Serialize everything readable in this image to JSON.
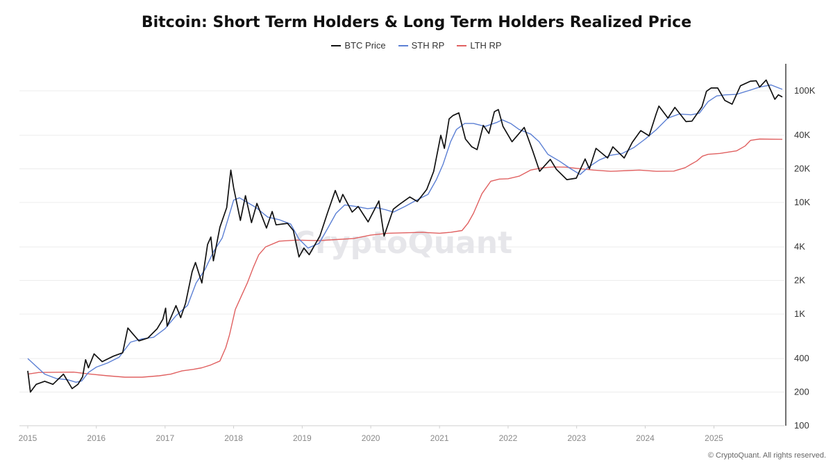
{
  "chart_data": {
    "type": "line",
    "title": "Bitcoin: Short Term Holders & Long Term Holders Realized Price",
    "y_scale": "log",
    "ylim": [
      100,
      200000
    ],
    "xlim": [
      "2015-01-01",
      "2025-12-31"
    ],
    "x_ticks": [
      "2015",
      "2016",
      "2017",
      "2018",
      "2019",
      "2020",
      "2021",
      "2022",
      "2023",
      "2024",
      "2025"
    ],
    "y_ticks": [
      {
        "value": 100,
        "label": "100"
      },
      {
        "value": 200,
        "label": "200"
      },
      {
        "value": 400,
        "label": "400"
      },
      {
        "value": 1000,
        "label": "1K"
      },
      {
        "value": 2000,
        "label": "2K"
      },
      {
        "value": 4000,
        "label": "4K"
      },
      {
        "value": 10000,
        "label": "10K"
      },
      {
        "value": 20000,
        "label": "20K"
      },
      {
        "value": 40000,
        "label": "40K"
      },
      {
        "value": 100000,
        "label": "100K"
      }
    ],
    "grid": true,
    "legend_position": "top-center",
    "watermark": "CryptoQuant",
    "series": [
      {
        "name": "BTC Price",
        "color": "#111111",
        "points": [
          [
            "2015-01-01",
            310
          ],
          [
            "2015-01-15",
            200
          ],
          [
            "2015-02-15",
            235
          ],
          [
            "2015-04-01",
            250
          ],
          [
            "2015-05-15",
            235
          ],
          [
            "2015-07-10",
            290
          ],
          [
            "2015-08-25",
            215
          ],
          [
            "2015-09-25",
            235
          ],
          [
            "2015-10-20",
            275
          ],
          [
            "2015-11-05",
            390
          ],
          [
            "2015-11-20",
            330
          ],
          [
            "2015-12-20",
            440
          ],
          [
            "2016-02-01",
            375
          ],
          [
            "2016-04-01",
            420
          ],
          [
            "2016-05-20",
            450
          ],
          [
            "2016-06-17",
            750
          ],
          [
            "2016-07-15",
            660
          ],
          [
            "2016-08-15",
            575
          ],
          [
            "2016-10-01",
            610
          ],
          [
            "2016-11-20",
            740
          ],
          [
            "2016-12-20",
            900
          ],
          [
            "2017-01-04",
            1130
          ],
          [
            "2017-01-12",
            780
          ],
          [
            "2017-02-28",
            1190
          ],
          [
            "2017-03-25",
            930
          ],
          [
            "2017-04-20",
            1250
          ],
          [
            "2017-05-25",
            2400
          ],
          [
            "2017-06-12",
            2900
          ],
          [
            "2017-07-16",
            1900
          ],
          [
            "2017-08-15",
            4200
          ],
          [
            "2017-09-02",
            4900
          ],
          [
            "2017-09-15",
            3000
          ],
          [
            "2017-10-20",
            6000
          ],
          [
            "2017-11-25",
            9000
          ],
          [
            "2017-12-17",
            19500
          ],
          [
            "2018-01-01",
            13500
          ],
          [
            "2018-02-06",
            6900
          ],
          [
            "2018-03-05",
            11500
          ],
          [
            "2018-04-06",
            6600
          ],
          [
            "2018-05-05",
            9800
          ],
          [
            "2018-06-25",
            5900
          ],
          [
            "2018-07-25",
            8300
          ],
          [
            "2018-08-15",
            6300
          ],
          [
            "2018-10-15",
            6500
          ],
          [
            "2018-11-15",
            5600
          ],
          [
            "2018-12-15",
            3250
          ],
          [
            "2019-01-10",
            3900
          ],
          [
            "2019-02-07",
            3400
          ],
          [
            "2019-04-05",
            5000
          ],
          [
            "2019-05-15",
            8000
          ],
          [
            "2019-06-26",
            12800
          ],
          [
            "2019-07-20",
            10000
          ],
          [
            "2019-08-05",
            11800
          ],
          [
            "2019-09-24",
            8200
          ],
          [
            "2019-10-26",
            9200
          ],
          [
            "2019-12-18",
            6700
          ],
          [
            "2020-02-13",
            10300
          ],
          [
            "2020-03-12",
            5000
          ],
          [
            "2020-04-30",
            8700
          ],
          [
            "2020-06-01",
            9600
          ],
          [
            "2020-07-27",
            11200
          ],
          [
            "2020-09-05",
            10200
          ],
          [
            "2020-10-25",
            13100
          ],
          [
            "2020-12-01",
            19000
          ],
          [
            "2021-01-08",
            40000
          ],
          [
            "2021-01-27",
            30500
          ],
          [
            "2021-02-21",
            56000
          ],
          [
            "2021-03-13",
            60000
          ],
          [
            "2021-04-14",
            63500
          ],
          [
            "2021-05-19",
            37000
          ],
          [
            "2021-06-22",
            31500
          ],
          [
            "2021-07-20",
            29800
          ],
          [
            "2021-08-22",
            49000
          ],
          [
            "2021-09-21",
            41500
          ],
          [
            "2021-10-20",
            65000
          ],
          [
            "2021-11-10",
            68000
          ],
          [
            "2021-12-05",
            48000
          ],
          [
            "2022-01-22",
            35000
          ],
          [
            "2022-03-28",
            47000
          ],
          [
            "2022-05-12",
            29000
          ],
          [
            "2022-06-18",
            19000
          ],
          [
            "2022-08-14",
            24300
          ],
          [
            "2022-09-15",
            19800
          ],
          [
            "2022-11-10",
            16000
          ],
          [
            "2022-12-30",
            16500
          ],
          [
            "2023-02-15",
            24500
          ],
          [
            "2023-03-10",
            20000
          ],
          [
            "2023-04-14",
            30500
          ],
          [
            "2023-06-15",
            25000
          ],
          [
            "2023-07-13",
            31500
          ],
          [
            "2023-09-11",
            25000
          ],
          [
            "2023-10-24",
            34500
          ],
          [
            "2023-12-08",
            44000
          ],
          [
            "2024-01-22",
            39500
          ],
          [
            "2024-02-28",
            62000
          ],
          [
            "2024-03-14",
            73000
          ],
          [
            "2024-05-01",
            57000
          ],
          [
            "2024-06-07",
            71000
          ],
          [
            "2024-08-05",
            53000
          ],
          [
            "2024-09-06",
            53500
          ],
          [
            "2024-10-29",
            72000
          ],
          [
            "2024-11-22",
            99000
          ],
          [
            "2024-12-17",
            106000
          ],
          [
            "2025-01-21",
            106000
          ],
          [
            "2025-02-28",
            82000
          ],
          [
            "2025-04-08",
            76000
          ],
          [
            "2025-05-22",
            111000
          ],
          [
            "2025-07-14",
            122000
          ],
          [
            "2025-08-14",
            123000
          ],
          [
            "2025-09-01",
            108000
          ],
          [
            "2025-10-06",
            125000
          ],
          [
            "2025-11-21",
            84000
          ],
          [
            "2025-12-10",
            92000
          ],
          [
            "2025-12-31",
            88000
          ]
        ]
      },
      {
        "name": "STH RP",
        "color": "#5b7fd4",
        "points": [
          [
            "2015-01-01",
            400
          ],
          [
            "2015-02-15",
            340
          ],
          [
            "2015-04-01",
            290
          ],
          [
            "2015-06-01",
            265
          ],
          [
            "2015-08-01",
            258
          ],
          [
            "2015-09-15",
            245
          ],
          [
            "2015-10-15",
            252
          ],
          [
            "2015-11-20",
            300
          ],
          [
            "2016-01-01",
            335
          ],
          [
            "2016-03-01",
            365
          ],
          [
            "2016-05-01",
            410
          ],
          [
            "2016-07-01",
            560
          ],
          [
            "2016-09-01",
            600
          ],
          [
            "2016-11-01",
            620
          ],
          [
            "2017-01-01",
            740
          ],
          [
            "2017-03-01",
            970
          ],
          [
            "2017-05-01",
            1200
          ],
          [
            "2017-06-15",
            1900
          ],
          [
            "2017-08-01",
            2500
          ],
          [
            "2017-09-15",
            3600
          ],
          [
            "2017-11-01",
            4800
          ],
          [
            "2017-12-01",
            7000
          ],
          [
            "2018-01-01",
            10500
          ],
          [
            "2018-02-01",
            11000
          ],
          [
            "2018-03-15",
            10000
          ],
          [
            "2018-05-01",
            9000
          ],
          [
            "2018-07-01",
            7400
          ],
          [
            "2018-09-01",
            7000
          ],
          [
            "2018-11-01",
            6400
          ],
          [
            "2018-12-15",
            4700
          ],
          [
            "2019-02-01",
            3900
          ],
          [
            "2019-04-01",
            4300
          ],
          [
            "2019-05-15",
            5800
          ],
          [
            "2019-06-30",
            8000
          ],
          [
            "2019-08-15",
            9500
          ],
          [
            "2019-10-15",
            9200
          ],
          [
            "2019-12-15",
            8800
          ],
          [
            "2020-02-01",
            9000
          ],
          [
            "2020-03-20",
            8600
          ],
          [
            "2020-05-01",
            8200
          ],
          [
            "2020-07-01",
            9200
          ],
          [
            "2020-09-01",
            10500
          ],
          [
            "2020-11-01",
            11800
          ],
          [
            "2020-12-15",
            16000
          ],
          [
            "2021-01-20",
            22000
          ],
          [
            "2021-03-01",
            35000
          ],
          [
            "2021-04-01",
            45000
          ],
          [
            "2021-05-15",
            51000
          ],
          [
            "2021-07-01",
            51000
          ],
          [
            "2021-09-01",
            48000
          ],
          [
            "2021-11-01",
            52000
          ],
          [
            "2021-12-01",
            55000
          ],
          [
            "2022-01-15",
            51000
          ],
          [
            "2022-03-01",
            45000
          ],
          [
            "2022-05-01",
            41000
          ],
          [
            "2022-06-15",
            35000
          ],
          [
            "2022-08-01",
            27000
          ],
          [
            "2022-10-01",
            23500
          ],
          [
            "2022-12-01",
            20000
          ],
          [
            "2023-01-20",
            17800
          ],
          [
            "2023-03-01",
            20500
          ],
          [
            "2023-05-01",
            24000
          ],
          [
            "2023-07-01",
            26500
          ],
          [
            "2023-09-01",
            27500
          ],
          [
            "2023-11-01",
            31000
          ],
          [
            "2024-01-01",
            37000
          ],
          [
            "2024-03-01",
            45000
          ],
          [
            "2024-05-01",
            57000
          ],
          [
            "2024-07-01",
            62000
          ],
          [
            "2024-09-01",
            61000
          ],
          [
            "2024-10-15",
            63000
          ],
          [
            "2024-12-01",
            80000
          ],
          [
            "2025-01-15",
            90000
          ],
          [
            "2025-03-01",
            92000
          ],
          [
            "2025-05-01",
            93000
          ],
          [
            "2025-07-01",
            100000
          ],
          [
            "2025-09-01",
            108000
          ],
          [
            "2025-11-01",
            113000
          ],
          [
            "2025-12-31",
            103000
          ]
        ]
      },
      {
        "name": "LTH RP",
        "color": "#e06060",
        "points": [
          [
            "2015-01-01",
            290
          ],
          [
            "2015-03-01",
            300
          ],
          [
            "2015-09-01",
            302
          ],
          [
            "2015-12-01",
            290
          ],
          [
            "2016-03-01",
            280
          ],
          [
            "2016-06-01",
            272
          ],
          [
            "2016-09-01",
            272
          ],
          [
            "2016-12-01",
            280
          ],
          [
            "2017-02-01",
            290
          ],
          [
            "2017-04-01",
            310
          ],
          [
            "2017-06-01",
            320
          ],
          [
            "2017-07-15",
            330
          ],
          [
            "2017-09-01",
            350
          ],
          [
            "2017-10-20",
            380
          ],
          [
            "2017-11-20",
            500
          ],
          [
            "2017-12-10",
            650
          ],
          [
            "2018-01-10",
            1100
          ],
          [
            "2018-02-15",
            1500
          ],
          [
            "2018-03-15",
            1900
          ],
          [
            "2018-04-15",
            2600
          ],
          [
            "2018-05-15",
            3400
          ],
          [
            "2018-06-20",
            4000
          ],
          [
            "2018-09-01",
            4500
          ],
          [
            "2018-12-01",
            4600
          ],
          [
            "2019-04-01",
            4550
          ],
          [
            "2019-07-01",
            4650
          ],
          [
            "2019-10-01",
            4750
          ],
          [
            "2020-01-01",
            5100
          ],
          [
            "2020-04-01",
            5300
          ],
          [
            "2020-10-01",
            5400
          ],
          [
            "2021-01-01",
            5300
          ],
          [
            "2021-03-01",
            5400
          ],
          [
            "2021-05-01",
            5600
          ],
          [
            "2021-06-01",
            6500
          ],
          [
            "2021-07-01",
            8000
          ],
          [
            "2021-08-15",
            12000
          ],
          [
            "2021-10-01",
            15500
          ],
          [
            "2021-11-15",
            16200
          ],
          [
            "2022-01-01",
            16300
          ],
          [
            "2022-03-01",
            17200
          ],
          [
            "2022-05-01",
            19500
          ],
          [
            "2022-07-01",
            20400
          ],
          [
            "2022-09-01",
            20800
          ],
          [
            "2022-11-01",
            20700
          ],
          [
            "2023-01-01",
            20200
          ],
          [
            "2023-04-01",
            19500
          ],
          [
            "2023-07-01",
            19000
          ],
          [
            "2023-10-01",
            19300
          ],
          [
            "2023-12-01",
            19500
          ],
          [
            "2024-03-01",
            19000
          ],
          [
            "2024-06-01",
            19100
          ],
          [
            "2024-08-01",
            20500
          ],
          [
            "2024-09-01",
            22000
          ],
          [
            "2024-10-01",
            23500
          ],
          [
            "2024-11-01",
            26000
          ],
          [
            "2024-12-01",
            27000
          ],
          [
            "2025-02-01",
            27500
          ],
          [
            "2025-05-01",
            29000
          ],
          [
            "2025-06-15",
            32000
          ],
          [
            "2025-07-15",
            36000
          ],
          [
            "2025-09-01",
            37000
          ],
          [
            "2025-12-31",
            36800
          ]
        ]
      }
    ]
  },
  "footer_text": "© CryptoQuant. All rights reserved."
}
